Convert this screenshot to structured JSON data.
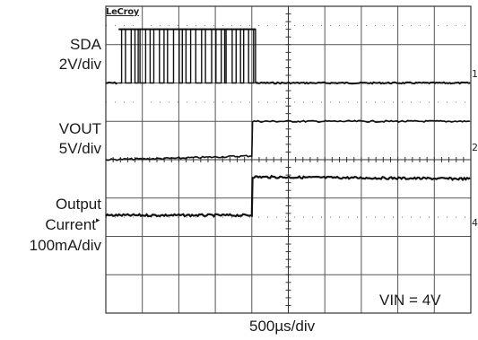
{
  "brand": "LeCroy",
  "channels": {
    "sda": {
      "name": "SDA",
      "scale": "2V/div",
      "marker": "1"
    },
    "vout": {
      "name": "VOUT",
      "scale": "5V/div",
      "marker": "2"
    },
    "current": {
      "name_line1": "Output",
      "name_line2": "Current",
      "pointer": "▸",
      "scale": "100mA/div",
      "marker": "4"
    }
  },
  "annotation": "VIN = 4V",
  "timebase": "500µs/div",
  "chart_data": {
    "type": "line",
    "title": "",
    "xlabel": "500µs/div",
    "ylabel": "",
    "grid": true,
    "x_divisions": 10,
    "y_divisions": 8,
    "x_unit": "div",
    "series": [
      {
        "name": "SDA",
        "scale_per_div": "2V",
        "baseline_div": 6.0,
        "points": [
          [
            0,
            6.0
          ],
          [
            0.35,
            6.0
          ],
          [
            0.35,
            7.4
          ],
          [
            4.1,
            7.4
          ],
          [
            4.1,
            6.0
          ],
          [
            10,
            6.0
          ]
        ],
        "note": "I2C burst toggling between ~0 and ~7V from about 0.35 div to 4.1 div"
      },
      {
        "name": "VOUT",
        "scale_per_div": "5V",
        "points": [
          [
            0,
            4.0
          ],
          [
            2.0,
            4.04
          ],
          [
            4.0,
            4.1
          ],
          [
            4.02,
            5.0
          ],
          [
            10,
            5.0
          ]
        ],
        "note": "steps up by about 1 div at ~4.0 div"
      },
      {
        "name": "Output Current",
        "scale_per_div": "100mA",
        "points": [
          [
            0,
            2.55
          ],
          [
            4.0,
            2.55
          ],
          [
            4.02,
            3.55
          ],
          [
            10,
            3.5
          ]
        ],
        "note": "steps up by about 1 div at ~4.0 div"
      }
    ]
  }
}
